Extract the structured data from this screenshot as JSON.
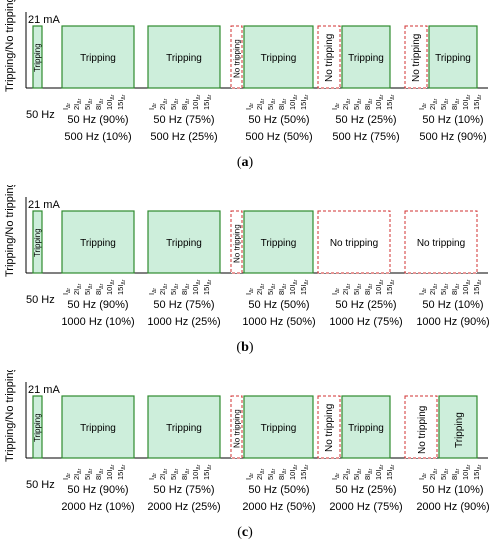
{
  "colors": {
    "tripping_fill": "#cdeedb",
    "tripping_border": "#2e8b2e",
    "no_tripping_fill": "#ffffff",
    "no_tripping_border": "#d03030",
    "axis": "#000000"
  },
  "common": {
    "y_axis_label": "Tripping/No tripping",
    "level_label": "21 mA",
    "base_freq_label": "50 Hz",
    "tick_labels": [
      "I",
      "2I",
      "5I",
      "8I",
      "10I",
      "15I"
    ],
    "tick_subscript": "Δr"
  },
  "panels": [
    {
      "label": "(a)",
      "groups": [
        {
          "line1": "50 Hz (90%)",
          "line2": "500 Hz (10%)",
          "result_text": "Tripping",
          "small_text": "",
          "small_state": "none"
        },
        {
          "line1": "50 Hz (75%)",
          "line2": "500 Hz (25%)",
          "result_text": "Tripping",
          "small_text": "",
          "small_state": "none"
        },
        {
          "line1": "50 Hz (50%)",
          "line2": "500 Hz (50%)",
          "result_text": "Tripping",
          "small_text": "No tripping",
          "small_state": "no_tripping"
        },
        {
          "line1": "50 Hz (25%)",
          "line2": "500 Hz (75%)",
          "result_text": "Tripping",
          "small_text": "No tripping",
          "small_state": "no_tripping"
        },
        {
          "line1": "50 Hz (10%)",
          "line2": "500 Hz (90%)",
          "result_text": "Tripping",
          "small_text": "No tripping",
          "small_state": "no_tripping"
        }
      ]
    },
    {
      "label": "(b)",
      "groups": [
        {
          "line1": "50 Hz (90%)",
          "line2": "1000 Hz (10%)",
          "result_text": "Tripping",
          "small_text": "",
          "small_state": "none"
        },
        {
          "line1": "50 Hz (75%)",
          "line2": "1000 Hz (25%)",
          "result_text": "Tripping",
          "small_text": "",
          "small_state": "none"
        },
        {
          "line1": "50 Hz (50%)",
          "line2": "1000 Hz (50%)",
          "result_text": "Tripping",
          "small_text": "No tripping",
          "small_state": "no_tripping"
        },
        {
          "line1": "50 Hz (25%)",
          "line2": "1000 Hz (75%)",
          "result_text": "",
          "small_text": "No tripping",
          "small_state": "no_tripping_wide"
        },
        {
          "line1": "50 Hz (10%)",
          "line2": "1000 Hz (90%)",
          "result_text": "",
          "small_text": "No tripping",
          "small_state": "no_tripping_wide"
        }
      ]
    },
    {
      "label": "(c)",
      "groups": [
        {
          "line1": "50 Hz (90%)",
          "line2": "2000 Hz (10%)",
          "result_text": "Tripping",
          "small_text": "",
          "small_state": "none"
        },
        {
          "line1": "50 Hz (75%)",
          "line2": "2000 Hz (25%)",
          "result_text": "Tripping",
          "small_text": "",
          "small_state": "none"
        },
        {
          "line1": "50 Hz (50%)",
          "line2": "2000 Hz (50%)",
          "result_text": "Tripping",
          "small_text": "No tripping",
          "small_state": "no_tripping"
        },
        {
          "line1": "50 Hz (25%)",
          "line2": "2000 Hz (75%)",
          "result_text": "Tripping",
          "small_text": "No tripping",
          "small_state": "no_tripping"
        },
        {
          "line1": "50 Hz (10%)",
          "line2": "2000 Hz (90%)",
          "result_text": "Tripping",
          "small_text": "No tripping",
          "small_state": "no_tripping_mid"
        }
      ]
    }
  ]
}
